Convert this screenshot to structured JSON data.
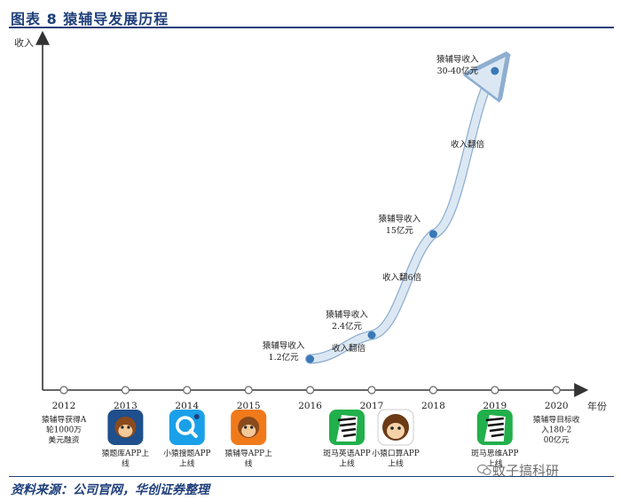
{
  "header": {
    "title": "图表 8 猿辅导发展历程"
  },
  "footer": {
    "source": "资料来源：公司官网，华创证券整理"
  },
  "watermark": {
    "text": "蚊子搞科研",
    "logo": "wechat-logo"
  },
  "colors": {
    "axis": "#333333",
    "marker": "#3a78b8",
    "band_fill": "#dbe8f3",
    "band_edge": "#8eaed0",
    "title": "#1f3f7a",
    "icon_blue": "#1aa0e8",
    "icon_orange": "#f07a1a",
    "icon_green": "#21b04b",
    "icon_navy": "#1f4f8c"
  },
  "chart_data": {
    "type": "line",
    "title": "",
    "xlabel": "年份",
    "ylabel": "收入",
    "years": [
      "2012",
      "2013",
      "2014",
      "2015",
      "2016",
      "2017",
      "2018",
      "2019",
      "2020"
    ],
    "grid": false,
    "series": [
      {
        "points": [
          {
            "x": 2016,
            "y": 1.2,
            "label": "猿辅导收入 1.2亿元"
          },
          {
            "x": 2017,
            "y": 2.4,
            "label": "猿辅导收入 2.4亿元"
          },
          {
            "x": 2018,
            "y": 15,
            "label": "猿辅导收入 15亿元"
          },
          {
            "x": 2019,
            "y": 35,
            "label": "猿辅导收入 30-40亿元"
          }
        ]
      }
    ],
    "segment_annotations": [
      "收入翻倍",
      "收入翻6倍",
      "收入翻倍"
    ],
    "timeline": [
      {
        "year": "2012",
        "text": "猿辅导获得A轮1000万美元融资",
        "icon": ""
      },
      {
        "year": "2013",
        "text": "猿题库APP上线",
        "icon": "yuantiku-app-icon"
      },
      {
        "year": "2014",
        "text": "小猿搜题APP上线",
        "icon": "xiaoyuan-soti-app-icon"
      },
      {
        "year": "2015",
        "text": "猿辅导APP上线",
        "icon": "yuanfudao-app-icon"
      },
      {
        "year": "2016",
        "text": "",
        "icon": ""
      },
      {
        "year": "2017",
        "text": "斑马英语APP上线",
        "icon": "zebra-english-app-icon"
      },
      {
        "year": "2017",
        "text": "小猿口算APP上线",
        "icon": "xiaoyuan-kousuan-app-icon"
      },
      {
        "year": "2019",
        "text": "斑马思维APP上线",
        "icon": "zebra-thinking-app-icon"
      },
      {
        "year": "2020",
        "text": "猿辅导目标收入180-200亿元",
        "icon": ""
      }
    ]
  }
}
